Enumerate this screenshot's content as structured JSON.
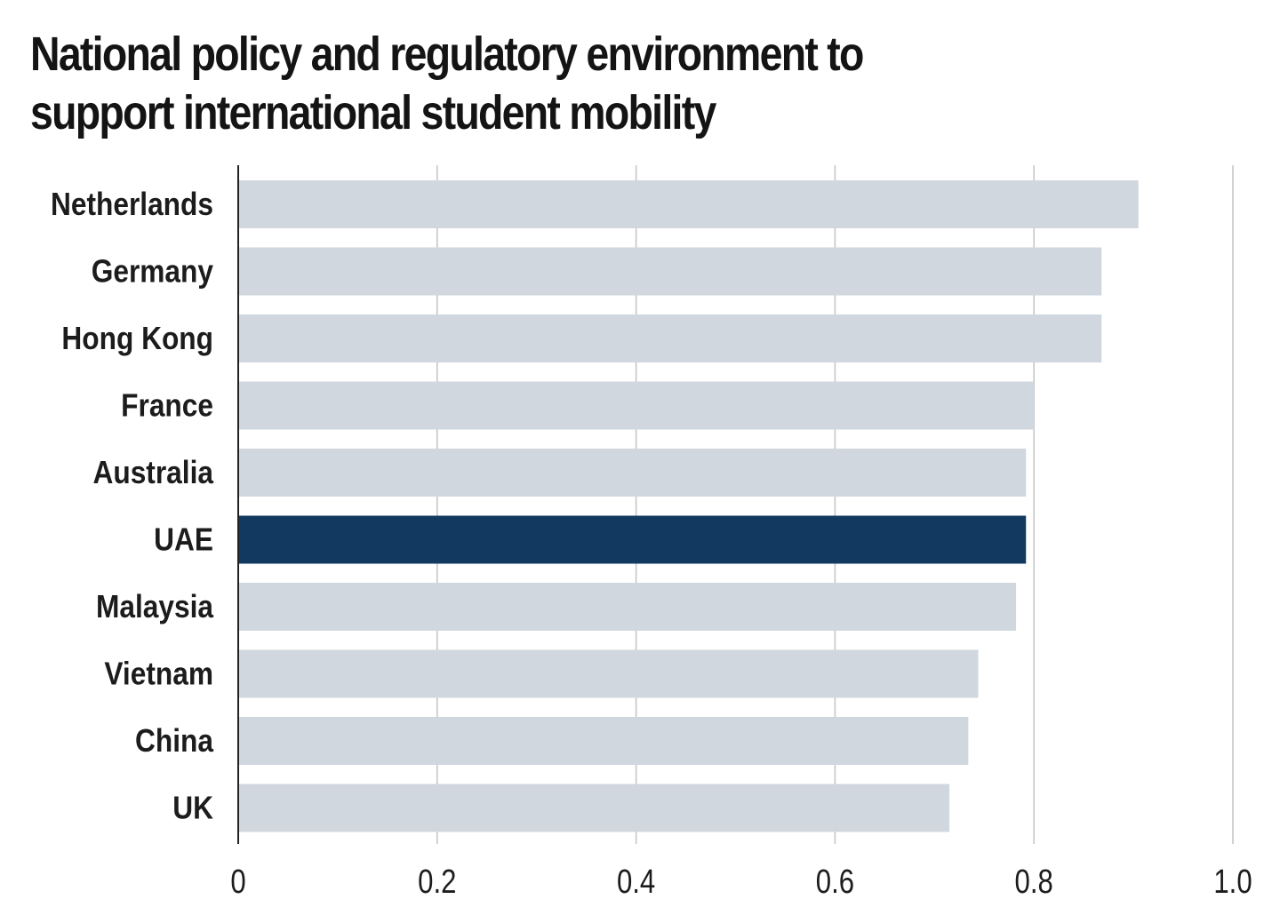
{
  "chart_data": {
    "type": "bar",
    "orientation": "horizontal",
    "title": "National policy and regulatory environment to support international student mobility",
    "categories": [
      "Netherlands",
      "Germany",
      "Hong Kong",
      "France",
      "Australia",
      "UAE",
      "Malaysia",
      "Vietnam",
      "China",
      "UK"
    ],
    "values": [
      0.905,
      0.868,
      0.868,
      0.8,
      0.792,
      0.792,
      0.782,
      0.744,
      0.734,
      0.715
    ],
    "highlight": "UAE",
    "colors": {
      "bar": "#d0d7de",
      "highlight": "#123a60",
      "grid": "#c4c4c4",
      "axis": "#222222"
    },
    "xlim": [
      0,
      1.0
    ],
    "xticks": [
      0,
      0.2,
      0.4,
      0.6,
      0.8,
      1.0
    ],
    "xtick_labels": [
      "0",
      "0.2",
      "0.4",
      "0.6",
      "0.8",
      "1.0"
    ],
    "xlabel": "",
    "ylabel": "",
    "grid": "vertical",
    "legend": "none"
  }
}
